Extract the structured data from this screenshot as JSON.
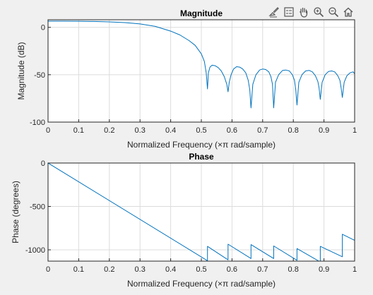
{
  "toolbar": {
    "icons": [
      "brush-icon",
      "legend-icon",
      "pan-hand-icon",
      "zoom-in-icon",
      "zoom-out-icon",
      "home-icon"
    ]
  },
  "colors": {
    "line": "#0072bd",
    "axes_bg": "#ffffff",
    "figure_bg": "#f0f0f0",
    "grid": "#dcdcdc",
    "axis": "#262626"
  },
  "chart_data": [
    {
      "type": "line",
      "title": "Magnitude",
      "xlabel": "Normalized Frequency  (×π rad/sample)",
      "ylabel": "Magnitude (dB)",
      "xlim": [
        0,
        1
      ],
      "ylim": [
        -100,
        8
      ],
      "xticks": [
        "0",
        "0.1",
        "0.2",
        "0.3",
        "0.4",
        "0.5",
        "0.6",
        "0.7",
        "0.8",
        "0.9",
        "1"
      ],
      "yticks": [
        {
          "value": -100,
          "label": "-100"
        },
        {
          "value": -50,
          "label": "-50"
        },
        {
          "value": 0,
          "label": "0"
        }
      ],
      "grid": true,
      "series": [
        {
          "x": [
            0,
            0.05,
            0.1,
            0.15,
            0.2,
            0.25,
            0.3,
            0.35,
            0.4,
            0.43,
            0.46,
            0.48,
            0.5,
            0.51,
            0.516,
            0.52,
            0.523,
            0.528,
            0.535,
            0.545,
            0.555,
            0.565,
            0.575,
            0.583,
            0.587,
            0.591,
            0.597,
            0.605,
            0.615,
            0.625,
            0.635,
            0.645,
            0.653,
            0.658,
            0.662,
            0.668,
            0.678,
            0.69,
            0.7,
            0.71,
            0.72,
            0.727,
            0.732,
            0.736,
            0.742,
            0.752,
            0.765,
            0.775,
            0.787,
            0.797,
            0.804,
            0.808,
            0.812,
            0.818,
            0.828,
            0.84,
            0.852,
            0.862,
            0.872,
            0.88,
            0.884,
            0.888,
            0.894,
            0.904,
            0.915,
            0.925,
            0.935,
            0.945,
            0.952,
            0.956,
            0.96,
            0.966,
            0.975,
            0.985,
            0.995,
            1.0
          ],
          "y": [
            6.5,
            6.5,
            6.4,
            6.2,
            5.8,
            5.0,
            3.6,
            1.0,
            -4.0,
            -8.0,
            -14.0,
            -19.0,
            -28.0,
            -36.0,
            -48.0,
            -65.0,
            -48.0,
            -42.0,
            -40.0,
            -40.5,
            -42.5,
            -46.0,
            -52.0,
            -60.0,
            -68.0,
            -58.0,
            -50.0,
            -44.0,
            -41.5,
            -42.0,
            -44.0,
            -48.0,
            -56.0,
            -66.0,
            -85.0,
            -60.0,
            -50.0,
            -45.0,
            -44.0,
            -44.5,
            -47.0,
            -52.0,
            -60.0,
            -85.0,
            -58.0,
            -50.0,
            -45.5,
            -45.0,
            -46.0,
            -50.0,
            -56.0,
            -66.0,
            -82.0,
            -58.0,
            -50.0,
            -46.0,
            -45.5,
            -47.0,
            -51.0,
            -57.0,
            -64.0,
            -76.0,
            -58.0,
            -50.0,
            -46.5,
            -46.0,
            -47.0,
            -51.0,
            -56.0,
            -64.0,
            -74.0,
            -58.0,
            -51.0,
            -48.0,
            -47.0,
            -49.0
          ]
        }
      ]
    },
    {
      "type": "line",
      "title": "Phase",
      "xlabel": "Normalized Frequency  (×π rad/sample)",
      "ylabel": "Phase (degrees)",
      "xlim": [
        0,
        1
      ],
      "ylim": [
        -1130,
        0
      ],
      "xticks": [
        "0",
        "0.1",
        "0.2",
        "0.3",
        "0.4",
        "0.5",
        "0.6",
        "0.7",
        "0.8",
        "0.9",
        "1"
      ],
      "yticks": [
        {
          "value": -1000,
          "label": "-1000"
        },
        {
          "value": -500,
          "label": "-500"
        },
        {
          "value": 0,
          "label": "0"
        }
      ],
      "grid": true,
      "series": [
        {
          "x": [
            0,
            0.52,
            0.52,
            0.587,
            0.587,
            0.662,
            0.662,
            0.736,
            0.736,
            0.812,
            0.812,
            0.888,
            0.888,
            0.96,
            0.96,
            1.0
          ],
          "y": [
            0,
            -1125,
            -960,
            -1115,
            -935,
            -1100,
            -940,
            -1100,
            -955,
            -1120,
            -985,
            -1140,
            -960,
            -1080,
            -820,
            -890
          ]
        }
      ]
    }
  ]
}
